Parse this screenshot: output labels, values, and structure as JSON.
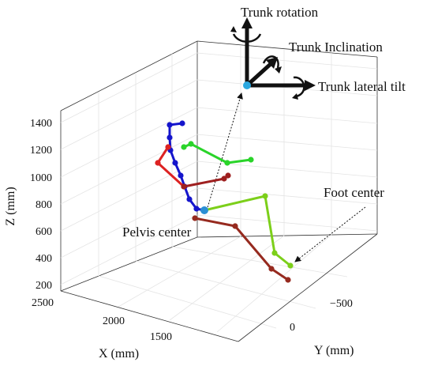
{
  "chart_data": {
    "type": "scatter",
    "title": "",
    "xlabel": "X (mm)",
    "ylabel": "Y (mm)",
    "zlabel": "Z (mm)",
    "x_ticks": [
      "2500",
      "2000",
      "1500"
    ],
    "y_ticks": [
      "−500",
      "0"
    ],
    "z_ticks": [
      "1400",
      "1200",
      "1000",
      "800",
      "600",
      "400",
      "200"
    ],
    "grid": true,
    "annotations": {
      "trunk_rotation": "Trunk rotation",
      "trunk_inclination": "Trunk Inclination",
      "trunk_lateral_tilt": "Trunk lateral tilt",
      "foot_center": "Foot center",
      "pelvis_center": "Pelvis center"
    },
    "colors": {
      "spine": "#1515cc",
      "left_arm": "#2ad42a",
      "right_arm": "#dd2222",
      "right_arm_dark": "#9e1f1f",
      "left_leg": "#7ccf1a",
      "right_leg": "#962a1f",
      "pelvis": "#2a8fd4",
      "trunk_frame": "#111111",
      "frame_origin": "#2aa8e0"
    }
  }
}
